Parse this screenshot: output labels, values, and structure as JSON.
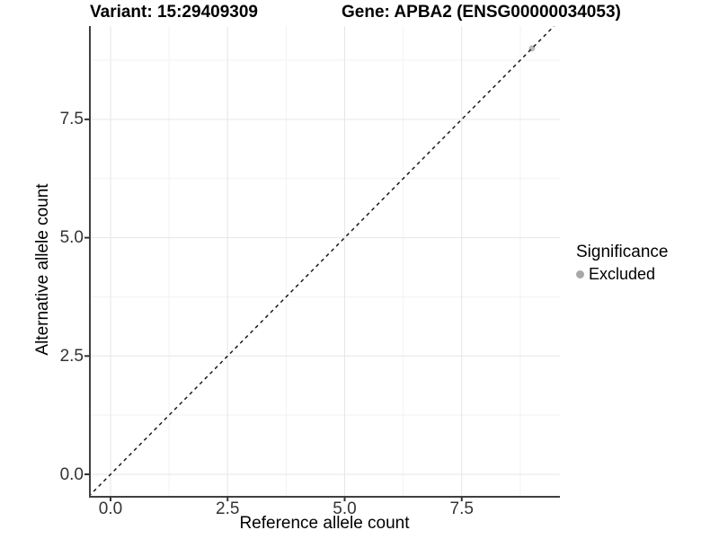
{
  "chart_data": {
    "type": "scatter",
    "titles": {
      "left": "Variant: 15:29409309",
      "right": "Gene: APBA2 (ENSG00000034053)"
    },
    "xlabel": "Reference allele count",
    "ylabel": "Alternative allele count",
    "x_ticks": [
      0.0,
      2.5,
      5.0,
      7.5
    ],
    "y_ticks": [
      0.0,
      2.5,
      5.0,
      7.5
    ],
    "x_tick_labels": [
      "0.0",
      "2.5",
      "5.0",
      "7.5"
    ],
    "y_tick_labels": [
      "0.0",
      "2.5",
      "5.0",
      "7.5"
    ],
    "xlim": [
      -0.47,
      9.47
    ],
    "ylim": [
      -0.47,
      9.47
    ],
    "grid": "major+minor",
    "identity_line": {
      "equation": "y = x",
      "style": "dashed",
      "color": "#1a1a1a"
    },
    "series": [
      {
        "name": "Excluded",
        "color": "#bdbdbd",
        "points": [
          {
            "x": 9,
            "y": 9
          }
        ]
      }
    ],
    "legend": {
      "title": "Significance",
      "position": "right",
      "entries": [
        {
          "label": "Excluded",
          "color": "#a8a8a8"
        }
      ]
    }
  },
  "colors": {
    "background": "#ffffff",
    "axis_line": "#404040",
    "tick_mark": "#333333",
    "tick_label": "#333333",
    "grid_major": "#e6e6e6",
    "grid_minor": "#f2f2f2",
    "point_fill": "#bdbdbd",
    "legend_key": "#a8a8a8",
    "dashed_line": "#1a1a1a"
  }
}
